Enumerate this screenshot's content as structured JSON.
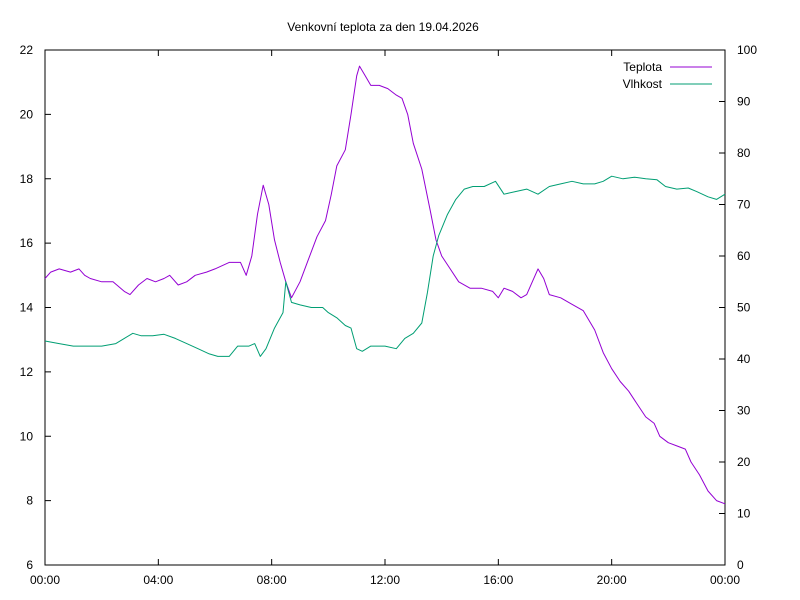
{
  "chart_data": {
    "type": "line",
    "title": "Venkovní teplota za den 19.04.2026",
    "xlabel": "",
    "ylabel": "",
    "y2label": "",
    "x_ticks": [
      "00:00",
      "04:00",
      "08:00",
      "12:00",
      "16:00",
      "20:00",
      "00:00"
    ],
    "xlim_hours": [
      0,
      24
    ],
    "ylim": [
      6,
      22
    ],
    "y_ticks": [
      6,
      8,
      10,
      12,
      14,
      16,
      18,
      20,
      22
    ],
    "y2lim": [
      0,
      100
    ],
    "y2_ticks": [
      0,
      10,
      20,
      30,
      40,
      50,
      60,
      70,
      80,
      90,
      100
    ],
    "grid": false,
    "legend_position": "top-right",
    "series": [
      {
        "name": "Teplota",
        "axis": "left",
        "color": "#9400d3",
        "points": [
          [
            0,
            14.9
          ],
          [
            0.2,
            15.1
          ],
          [
            0.5,
            15.2
          ],
          [
            0.9,
            15.1
          ],
          [
            1.2,
            15.2
          ],
          [
            1.4,
            15.0
          ],
          [
            1.6,
            14.9
          ],
          [
            2.0,
            14.8
          ],
          [
            2.4,
            14.8
          ],
          [
            2.8,
            14.5
          ],
          [
            3.0,
            14.4
          ],
          [
            3.3,
            14.7
          ],
          [
            3.6,
            14.9
          ],
          [
            3.9,
            14.8
          ],
          [
            4.2,
            14.9
          ],
          [
            4.4,
            15.0
          ],
          [
            4.7,
            14.7
          ],
          [
            5.0,
            14.8
          ],
          [
            5.3,
            15.0
          ],
          [
            5.7,
            15.1
          ],
          [
            6.0,
            15.2
          ],
          [
            6.5,
            15.4
          ],
          [
            6.9,
            15.4
          ],
          [
            7.1,
            15.0
          ],
          [
            7.3,
            15.6
          ],
          [
            7.5,
            16.9
          ],
          [
            7.7,
            17.8
          ],
          [
            7.9,
            17.2
          ],
          [
            8.1,
            16.1
          ],
          [
            8.3,
            15.4
          ],
          [
            8.5,
            14.8
          ],
          [
            8.7,
            14.3
          ],
          [
            9.0,
            14.8
          ],
          [
            9.3,
            15.5
          ],
          [
            9.6,
            16.2
          ],
          [
            9.9,
            16.7
          ],
          [
            10.1,
            17.5
          ],
          [
            10.3,
            18.4
          ],
          [
            10.6,
            18.9
          ],
          [
            10.8,
            20.0
          ],
          [
            11.0,
            21.2
          ],
          [
            11.1,
            21.5
          ],
          [
            11.3,
            21.2
          ],
          [
            11.5,
            20.9
          ],
          [
            11.8,
            20.9
          ],
          [
            12.1,
            20.8
          ],
          [
            12.4,
            20.6
          ],
          [
            12.6,
            20.5
          ],
          [
            12.8,
            20.0
          ],
          [
            13.0,
            19.1
          ],
          [
            13.3,
            18.3
          ],
          [
            13.6,
            17.0
          ],
          [
            13.8,
            16.1
          ],
          [
            14.0,
            15.6
          ],
          [
            14.3,
            15.2
          ],
          [
            14.6,
            14.8
          ],
          [
            15.0,
            14.6
          ],
          [
            15.4,
            14.6
          ],
          [
            15.8,
            14.5
          ],
          [
            16.0,
            14.3
          ],
          [
            16.2,
            14.6
          ],
          [
            16.5,
            14.5
          ],
          [
            16.8,
            14.3
          ],
          [
            17.0,
            14.4
          ],
          [
            17.2,
            14.8
          ],
          [
            17.4,
            15.2
          ],
          [
            17.6,
            14.9
          ],
          [
            17.8,
            14.4
          ],
          [
            18.2,
            14.3
          ],
          [
            18.6,
            14.1
          ],
          [
            19.0,
            13.9
          ],
          [
            19.4,
            13.3
          ],
          [
            19.7,
            12.6
          ],
          [
            20.0,
            12.1
          ],
          [
            20.3,
            11.7
          ],
          [
            20.6,
            11.4
          ],
          [
            20.9,
            11.0
          ],
          [
            21.2,
            10.6
          ],
          [
            21.5,
            10.4
          ],
          [
            21.7,
            10.0
          ],
          [
            22.0,
            9.8
          ],
          [
            22.3,
            9.7
          ],
          [
            22.6,
            9.6
          ],
          [
            22.8,
            9.2
          ],
          [
            23.1,
            8.8
          ],
          [
            23.4,
            8.3
          ],
          [
            23.7,
            8.0
          ],
          [
            24.0,
            7.9
          ]
        ]
      },
      {
        "name": "Vlhkost",
        "axis": "right",
        "color": "#009e73",
        "points": [
          [
            0,
            43.5
          ],
          [
            0.5,
            43.0
          ],
          [
            1.0,
            42.5
          ],
          [
            1.5,
            42.5
          ],
          [
            2.0,
            42.5
          ],
          [
            2.5,
            43.0
          ],
          [
            2.8,
            44.0
          ],
          [
            3.1,
            45.0
          ],
          [
            3.4,
            44.5
          ],
          [
            3.8,
            44.5
          ],
          [
            4.2,
            44.8
          ],
          [
            4.6,
            44.0
          ],
          [
            5.0,
            43.0
          ],
          [
            5.4,
            42.0
          ],
          [
            5.8,
            41.0
          ],
          [
            6.1,
            40.5
          ],
          [
            6.5,
            40.5
          ],
          [
            6.8,
            42.5
          ],
          [
            7.2,
            42.5
          ],
          [
            7.4,
            43.0
          ],
          [
            7.6,
            40.5
          ],
          [
            7.8,
            42.0
          ],
          [
            8.1,
            46.0
          ],
          [
            8.4,
            49.0
          ],
          [
            8.5,
            55.0
          ],
          [
            8.7,
            51.0
          ],
          [
            9.0,
            50.5
          ],
          [
            9.4,
            50.0
          ],
          [
            9.8,
            50.0
          ],
          [
            10.0,
            49.0
          ],
          [
            10.3,
            48.0
          ],
          [
            10.6,
            46.5
          ],
          [
            10.8,
            46.0
          ],
          [
            11.0,
            42.0
          ],
          [
            11.2,
            41.5
          ],
          [
            11.5,
            42.5
          ],
          [
            12.0,
            42.5
          ],
          [
            12.4,
            42.0
          ],
          [
            12.7,
            44.0
          ],
          [
            13.0,
            45.0
          ],
          [
            13.3,
            47.0
          ],
          [
            13.5,
            53.0
          ],
          [
            13.7,
            60.0
          ],
          [
            13.9,
            64.0
          ],
          [
            14.2,
            68.0
          ],
          [
            14.5,
            71.0
          ],
          [
            14.8,
            73.0
          ],
          [
            15.1,
            73.5
          ],
          [
            15.5,
            73.5
          ],
          [
            15.9,
            74.5
          ],
          [
            16.2,
            72.0
          ],
          [
            16.6,
            72.5
          ],
          [
            17.0,
            73.0
          ],
          [
            17.4,
            72.0
          ],
          [
            17.8,
            73.5
          ],
          [
            18.2,
            74.0
          ],
          [
            18.6,
            74.5
          ],
          [
            19.0,
            74.0
          ],
          [
            19.4,
            74.0
          ],
          [
            19.7,
            74.5
          ],
          [
            20.0,
            75.5
          ],
          [
            20.4,
            75.0
          ],
          [
            20.8,
            75.3
          ],
          [
            21.2,
            75.0
          ],
          [
            21.6,
            74.8
          ],
          [
            21.9,
            73.5
          ],
          [
            22.3,
            73.0
          ],
          [
            22.7,
            73.2
          ],
          [
            23.0,
            72.5
          ],
          [
            23.4,
            71.5
          ],
          [
            23.7,
            71.0
          ],
          [
            24.0,
            72.0
          ]
        ]
      }
    ]
  }
}
